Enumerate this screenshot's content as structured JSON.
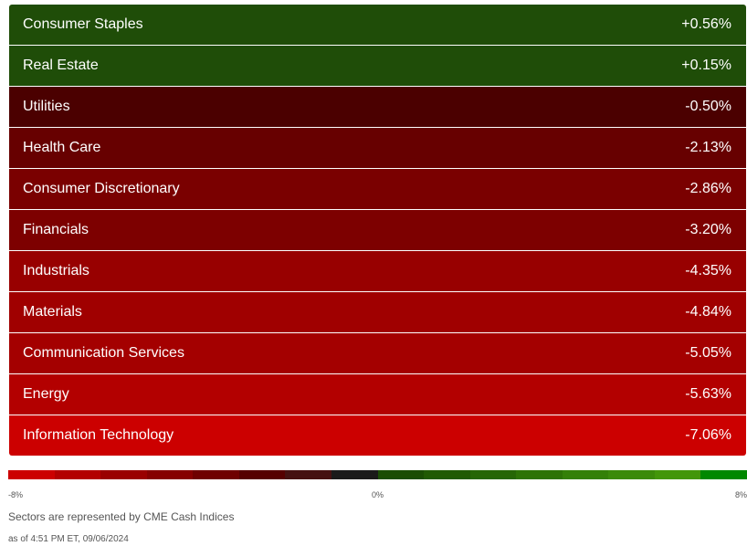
{
  "sectors": [
    {
      "name": "Consumer Staples",
      "change": "+0.56%",
      "color": "#1f4d08"
    },
    {
      "name": "Real Estate",
      "change": "+0.15%",
      "color": "#1f4d08"
    },
    {
      "name": "Utilities",
      "change": "-0.50%",
      "color": "#4b0000"
    },
    {
      "name": "Health Care",
      "change": "-2.13%",
      "color": "#670000"
    },
    {
      "name": "Consumer Discretionary",
      "change": "-2.86%",
      "color": "#7a0000"
    },
    {
      "name": "Financials",
      "change": "-3.20%",
      "color": "#7d0000"
    },
    {
      "name": "Industrials",
      "change": "-4.35%",
      "color": "#980000"
    },
    {
      "name": "Materials",
      "change": "-4.84%",
      "color": "#a00000"
    },
    {
      "name": "Communication Services",
      "change": "-5.05%",
      "color": "#a40000"
    },
    {
      "name": "Energy",
      "change": "-5.63%",
      "color": "#b30000"
    },
    {
      "name": "Information Technology",
      "change": "-7.06%",
      "color": "#cc0000"
    }
  ],
  "scale": {
    "min_label": "-8%",
    "mid_label": "0%",
    "max_label": "8%",
    "colors": [
      "#cc0000",
      "#b30000",
      "#9a0000",
      "#860000",
      "#6f0000",
      "#560000",
      "#451111",
      "#1a1a1a",
      "#1a4d04",
      "#205a04",
      "#266606",
      "#2d7306",
      "#348008",
      "#3b8a0a",
      "#43960a",
      "#008800"
    ]
  },
  "footnote": "Sectors are represented by CME Cash Indices",
  "timestamp": "as of 4:51 PM ET, 09/06/2024"
}
